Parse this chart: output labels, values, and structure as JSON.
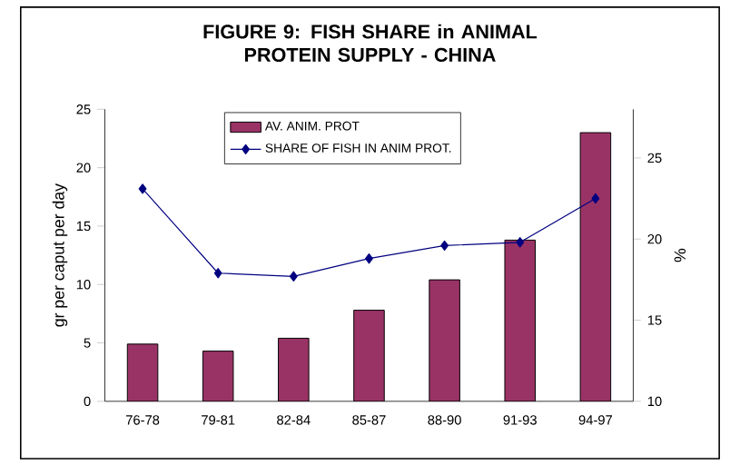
{
  "chart_data": {
    "type": "bar",
    "title": "FIGURE 9: FISH SHARE in ANIMAL PROTEIN SUPPLY - CHINA",
    "categories": [
      "76-78",
      "79-81",
      "82-84",
      "85-87",
      "88-90",
      "91-93",
      "94-97"
    ],
    "series": [
      {
        "name": "AV. ANIM. PROT",
        "color": "#993366",
        "values": [
          4.9,
          4.3,
          5.4,
          7.8,
          10.4,
          13.8,
          23.0
        ]
      },
      {
        "name": "SHARE OF FISH IN ANIM PROT.",
        "type": "line",
        "axis": "y2",
        "color": "#000080",
        "marker": "diamond",
        "values": [
          23.1,
          17.9,
          17.7,
          18.8,
          19.6,
          19.8,
          22.5
        ]
      }
    ],
    "ylabel": "gr per caput per day",
    "y2label": "%",
    "ylim": [
      0,
      25
    ],
    "yticks": [
      0,
      5,
      10,
      15,
      20,
      25
    ],
    "y2lim": [
      10,
      28
    ],
    "y2ticks": [
      10,
      15,
      20,
      25
    ],
    "legend": "top",
    "grid": false
  }
}
